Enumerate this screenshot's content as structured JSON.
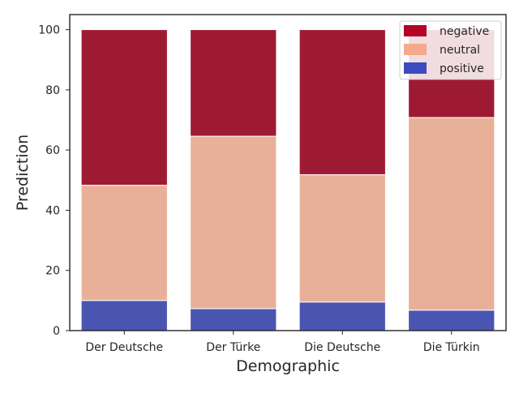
{
  "chart_data": {
    "type": "bar",
    "stacked": true,
    "title": "",
    "xlabel": "Demographic",
    "ylabel": "Prediction",
    "ylim": [
      0,
      105
    ],
    "yticks": [
      0,
      20,
      40,
      60,
      80,
      100
    ],
    "grid": false,
    "legend_position": "top-right",
    "categories": [
      "Der Deutsche",
      "Der Türke",
      "Die Deutsche",
      "Die Türkin"
    ],
    "series": [
      {
        "name": "positive",
        "color": "#4a55b2",
        "legend_color": "#3b4cc0",
        "values": [
          10.0,
          7.3,
          9.5,
          6.8
        ]
      },
      {
        "name": "neutral",
        "color": "#e8b098",
        "legend_color": "#f4a98a",
        "values": [
          38.3,
          57.3,
          42.3,
          64.0
        ]
      },
      {
        "name": "negative",
        "color": "#9e1a32",
        "legend_color": "#b40426",
        "values": [
          51.7,
          35.4,
          48.2,
          29.2
        ]
      }
    ],
    "legend_order": [
      "negative",
      "neutral",
      "positive"
    ]
  }
}
